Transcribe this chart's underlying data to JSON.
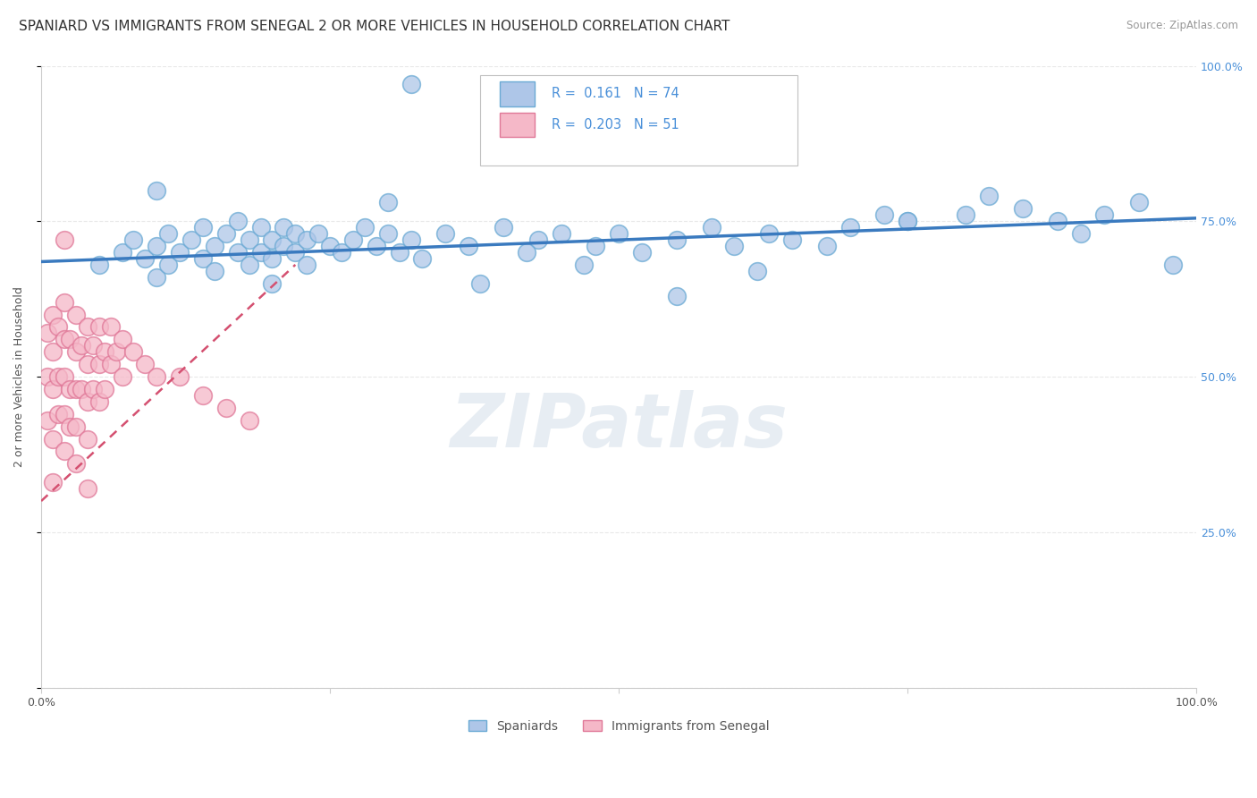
{
  "title": "SPANIARD VS IMMIGRANTS FROM SENEGAL 2 OR MORE VEHICLES IN HOUSEHOLD CORRELATION CHART",
  "source": "Source: ZipAtlas.com",
  "ylabel": "2 or more Vehicles in Household",
  "legend_entries": [
    {
      "label": "Spaniards",
      "color": "#aec6e8",
      "edge": "#6aaad4",
      "R": "0.161",
      "N": "74"
    },
    {
      "label": "Immigrants from Senegal",
      "color": "#f5b8c8",
      "edge": "#e07898",
      "R": "0.203",
      "N": "51"
    }
  ],
  "watermark": "ZIPatlas",
  "xlim": [
    0,
    1
  ],
  "ylim": [
    0,
    1
  ],
  "blue_scatter_x": [
    0.05,
    0.07,
    0.08,
    0.09,
    0.1,
    0.1,
    0.11,
    0.11,
    0.12,
    0.13,
    0.14,
    0.14,
    0.15,
    0.15,
    0.16,
    0.17,
    0.17,
    0.18,
    0.18,
    0.19,
    0.19,
    0.2,
    0.2,
    0.21,
    0.21,
    0.22,
    0.22,
    0.23,
    0.23,
    0.24,
    0.25,
    0.26,
    0.27,
    0.28,
    0.29,
    0.3,
    0.31,
    0.32,
    0.33,
    0.35,
    0.37,
    0.4,
    0.43,
    0.45,
    0.48,
    0.5,
    0.52,
    0.55,
    0.58,
    0.6,
    0.63,
    0.65,
    0.7,
    0.73,
    0.75,
    0.8,
    0.85,
    0.88,
    0.92,
    0.95,
    0.98,
    0.1,
    0.2,
    0.3,
    0.38,
    0.42,
    0.47,
    0.55,
    0.62,
    0.68,
    0.75,
    0.82,
    0.32,
    0.9
  ],
  "blue_scatter_y": [
    0.68,
    0.7,
    0.72,
    0.69,
    0.71,
    0.66,
    0.73,
    0.68,
    0.7,
    0.72,
    0.74,
    0.69,
    0.71,
    0.67,
    0.73,
    0.7,
    0.75,
    0.72,
    0.68,
    0.74,
    0.7,
    0.72,
    0.69,
    0.74,
    0.71,
    0.73,
    0.7,
    0.72,
    0.68,
    0.73,
    0.71,
    0.7,
    0.72,
    0.74,
    0.71,
    0.73,
    0.7,
    0.72,
    0.69,
    0.73,
    0.71,
    0.74,
    0.72,
    0.73,
    0.71,
    0.73,
    0.7,
    0.72,
    0.74,
    0.71,
    0.73,
    0.72,
    0.74,
    0.76,
    0.75,
    0.76,
    0.77,
    0.75,
    0.76,
    0.78,
    0.68,
    0.8,
    0.65,
    0.78,
    0.65,
    0.7,
    0.68,
    0.63,
    0.67,
    0.71,
    0.75,
    0.79,
    0.97,
    0.73
  ],
  "pink_scatter_x": [
    0.005,
    0.005,
    0.005,
    0.01,
    0.01,
    0.01,
    0.01,
    0.01,
    0.015,
    0.015,
    0.015,
    0.02,
    0.02,
    0.02,
    0.02,
    0.02,
    0.025,
    0.025,
    0.025,
    0.03,
    0.03,
    0.03,
    0.03,
    0.03,
    0.035,
    0.035,
    0.04,
    0.04,
    0.04,
    0.04,
    0.045,
    0.045,
    0.05,
    0.05,
    0.05,
    0.055,
    0.055,
    0.06,
    0.06,
    0.065,
    0.07,
    0.07,
    0.08,
    0.09,
    0.1,
    0.12,
    0.14,
    0.16,
    0.18,
    0.02,
    0.04
  ],
  "pink_scatter_y": [
    0.57,
    0.5,
    0.43,
    0.6,
    0.54,
    0.48,
    0.4,
    0.33,
    0.58,
    0.5,
    0.44,
    0.62,
    0.56,
    0.5,
    0.44,
    0.38,
    0.56,
    0.48,
    0.42,
    0.6,
    0.54,
    0.48,
    0.42,
    0.36,
    0.55,
    0.48,
    0.58,
    0.52,
    0.46,
    0.4,
    0.55,
    0.48,
    0.58,
    0.52,
    0.46,
    0.54,
    0.48,
    0.58,
    0.52,
    0.54,
    0.56,
    0.5,
    0.54,
    0.52,
    0.5,
    0.5,
    0.47,
    0.45,
    0.43,
    0.72,
    0.32
  ],
  "blue_trend_x": [
    0.0,
    1.0
  ],
  "blue_trend_y": [
    0.685,
    0.755
  ],
  "pink_trend_x": [
    0.0,
    0.22
  ],
  "pink_trend_y": [
    0.3,
    0.68
  ],
  "background_color": "#ffffff",
  "grid_color": "#e8e8e8",
  "title_fontsize": 11,
  "axis_label_fontsize": 9,
  "tick_fontsize": 9,
  "watermark_color": "#d0dce8",
  "watermark_fontsize": 60,
  "legend_R_color": "#4a90d9",
  "right_axis_color": "#4a90d9"
}
